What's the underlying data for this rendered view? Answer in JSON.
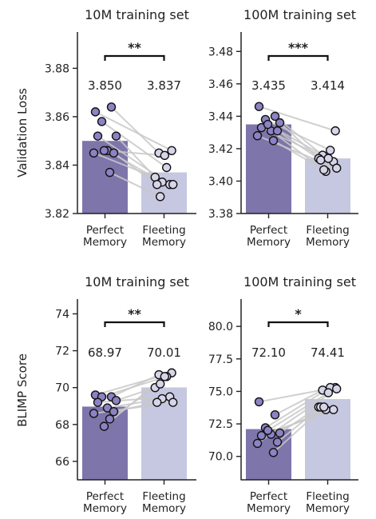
{
  "colors": {
    "perfect": "#7e75aa",
    "fleeting": "#c6c7e0",
    "perfect_dot": "#8b83c4",
    "fleeting_dot": "#d6d5ea",
    "pair_line": "#c8c8c8",
    "text": "#222222"
  },
  "y_labels": {
    "top": "Validation Loss",
    "bottom": "BLIMP Score"
  },
  "chart_data": [
    {
      "type": "bar",
      "title": "10M training set",
      "categories": [
        "Perfect\nMemory",
        "Fleeting\nMemory"
      ],
      "values": [
        3.85,
        3.837
      ],
      "value_labels": [
        "3.850",
        "3.837"
      ],
      "ylabel": "Validation Loss",
      "ylim": [
        3.82,
        3.895
      ],
      "yticks": [
        3.82,
        3.84,
        3.86,
        3.88
      ],
      "ytick_labels": [
        "3.82",
        "3.84",
        "3.86",
        "3.88"
      ],
      "significance": "**",
      "pairs": [
        [
          3.862,
          3.846
        ],
        [
          3.864,
          3.845
        ],
        [
          3.858,
          3.839
        ],
        [
          3.852,
          3.835
        ],
        [
          3.852,
          3.832
        ],
        [
          3.846,
          3.833
        ],
        [
          3.845,
          3.832
        ],
        [
          3.845,
          3.832
        ],
        [
          3.837,
          3.827
        ],
        [
          3.846,
          3.844
        ]
      ],
      "grid": false
    },
    {
      "type": "bar",
      "title": "100M training set",
      "categories": [
        "Perfect\nMemory",
        "Fleeting\nMemory"
      ],
      "values": [
        3.435,
        3.414
      ],
      "value_labels": [
        "3.435",
        "3.414"
      ],
      "ylabel": "",
      "ylim": [
        3.38,
        3.492
      ],
      "yticks": [
        3.38,
        3.4,
        3.42,
        3.44,
        3.46,
        3.48
      ],
      "ytick_labels": [
        "3.38",
        "3.40",
        "3.42",
        "3.44",
        "3.46",
        "3.48"
      ],
      "significance": "***",
      "pairs": [
        [
          3.446,
          3.431
        ],
        [
          3.44,
          3.416
        ],
        [
          3.438,
          3.419
        ],
        [
          3.436,
          3.414
        ],
        [
          3.433,
          3.412
        ],
        [
          3.431,
          3.406
        ],
        [
          3.431,
          3.413
        ],
        [
          3.428,
          3.408
        ],
        [
          3.425,
          3.407
        ],
        [
          3.435,
          3.414
        ]
      ],
      "grid": false
    },
    {
      "type": "bar",
      "title": "10M training set",
      "categories": [
        "Perfect\nMemory",
        "Fleeting\nMemory"
      ],
      "values": [
        68.97,
        70.01
      ],
      "value_labels": [
        "68.97",
        "70.01"
      ],
      "ylabel": "BLIMP Score",
      "ylim": [
        65.0,
        74.8
      ],
      "yticks": [
        66,
        68,
        70,
        72,
        74
      ],
      "ytick_labels": [
        "66",
        "68",
        "70",
        "72",
        "74"
      ],
      "significance": "**",
      "pairs": [
        [
          69.6,
          70.8
        ],
        [
          69.5,
          70.7
        ],
        [
          69.5,
          70.6
        ],
        [
          69.3,
          70.0
        ],
        [
          69.2,
          69.5
        ],
        [
          68.9,
          69.4
        ],
        [
          68.7,
          69.2
        ],
        [
          68.6,
          69.2
        ],
        [
          68.3,
          70.2
        ],
        [
          67.9,
          70.6
        ]
      ],
      "grid": false
    },
    {
      "type": "bar",
      "title": "100M training set",
      "categories": [
        "Perfect\nMemory",
        "Fleeting\nMemory"
      ],
      "values": [
        72.1,
        74.41
      ],
      "value_labels": [
        "72.10",
        "74.41"
      ],
      "ylabel": "",
      "ylim": [
        68.2,
        82.1
      ],
      "yticks": [
        70.0,
        72.5,
        75.0,
        77.5,
        80.0
      ],
      "ytick_labels": [
        "70.0",
        "72.5",
        "75.0",
        "77.5",
        "80.0"
      ],
      "significance": "*",
      "pairs": [
        [
          74.2,
          75.3
        ],
        [
          73.2,
          75.1
        ],
        [
          72.2,
          75.3
        ],
        [
          71.8,
          73.8
        ],
        [
          71.6,
          73.6
        ],
        [
          71.7,
          73.6
        ],
        [
          71.1,
          73.8
        ],
        [
          71.0,
          75.2
        ],
        [
          70.3,
          73.8
        ],
        [
          72.0,
          74.9
        ]
      ],
      "grid": false
    }
  ]
}
